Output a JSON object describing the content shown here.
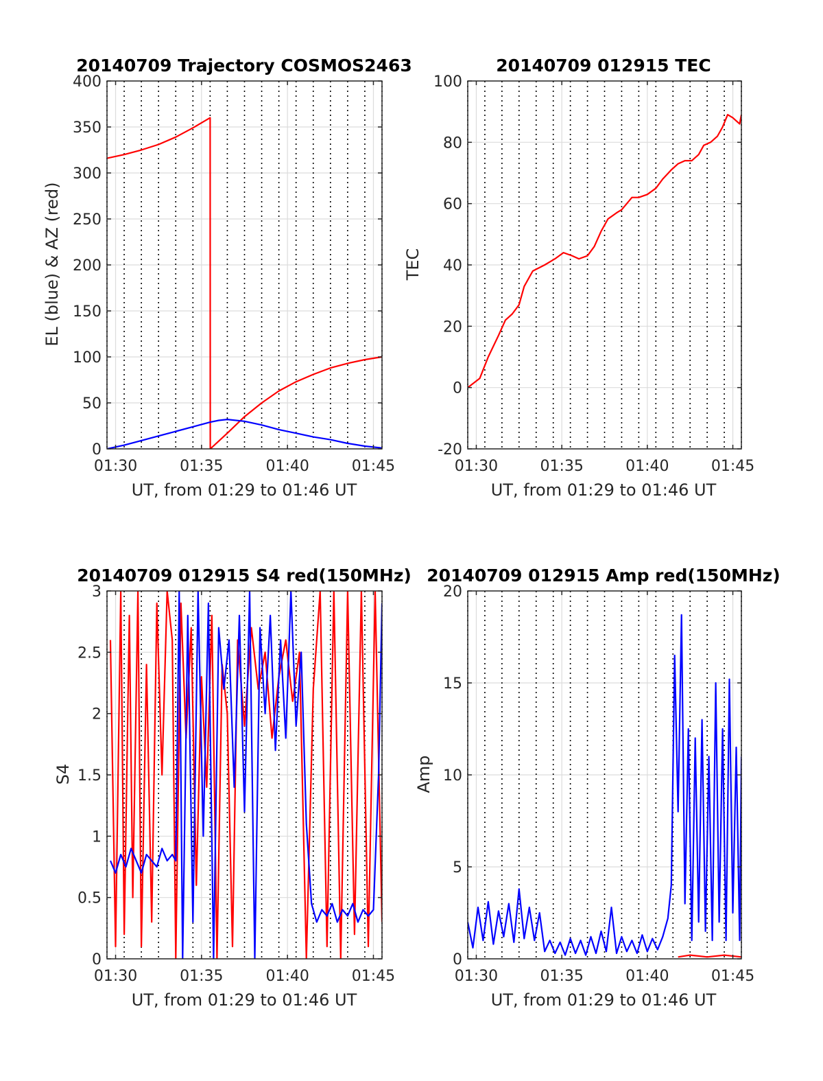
{
  "chart_data": [
    {
      "type": "line",
      "title": "20140709 Trajectory COSMOS2463",
      "xlabel": "UT, from 01:29 to 01:46 UT",
      "ylabel": "EL (blue) & AZ (red)",
      "xlim": [
        1.0,
        17.0
      ],
      "ylim": [
        0,
        400
      ],
      "x_ticks": [
        1.5,
        6.5,
        11.5,
        16.5
      ],
      "x_tick_labels": [
        "01:30",
        "01:35",
        "01:40",
        "01:45"
      ],
      "y_ticks": [
        0,
        50,
        100,
        150,
        200,
        250,
        300,
        350,
        400
      ],
      "y_tick_labels": [
        "0",
        "50",
        "100",
        "150",
        "200",
        "250",
        "300",
        "350",
        "400"
      ],
      "grid": "dotted vertical lines each minute, solid gray grid at ticks",
      "series": [
        {
          "color": "#ff0000",
          "points": [
            [
              1.0,
              316
            ],
            [
              2.0,
              320
            ],
            [
              3.0,
              325
            ],
            [
              4.0,
              331
            ],
            [
              5.0,
              339
            ],
            [
              6.0,
              349
            ],
            [
              7.0,
              360
            ],
            [
              7.01,
              0
            ],
            [
              8.0,
              17
            ],
            [
              9.0,
              35
            ],
            [
              10.0,
              50
            ],
            [
              11.0,
              63
            ],
            [
              12.0,
              73
            ],
            [
              13.0,
              81
            ],
            [
              14.0,
              88
            ],
            [
              15.0,
              93
            ],
            [
              16.0,
              97
            ],
            [
              17.0,
              100
            ]
          ]
        },
        {
          "color": "#0000ff",
          "points": [
            [
              1.0,
              0
            ],
            [
              2.0,
              4
            ],
            [
              3.0,
              9
            ],
            [
              4.0,
              14
            ],
            [
              5.0,
              19
            ],
            [
              6.0,
              24
            ],
            [
              7.0,
              29
            ],
            [
              7.5,
              31
            ],
            [
              8.0,
              32
            ],
            [
              9.0,
              30
            ],
            [
              10.0,
              26
            ],
            [
              11.0,
              21
            ],
            [
              12.0,
              17
            ],
            [
              13.0,
              13
            ],
            [
              14.0,
              10
            ],
            [
              15.0,
              6
            ],
            [
              16.0,
              3
            ],
            [
              17.0,
              1
            ]
          ]
        }
      ]
    },
    {
      "type": "line",
      "title": "20140709 012915 TEC",
      "xlabel": "UT, from 01:29 to 01:46 UT",
      "ylabel": "TEC",
      "xlim": [
        1.0,
        17.0
      ],
      "ylim": [
        -20,
        100
      ],
      "x_ticks": [
        1.5,
        6.5,
        11.5,
        16.5
      ],
      "x_tick_labels": [
        "01:30",
        "01:35",
        "01:40",
        "01:45"
      ],
      "y_ticks": [
        -20,
        0,
        20,
        40,
        60,
        80,
        100
      ],
      "y_tick_labels": [
        "-20",
        "0",
        "20",
        "40",
        "60",
        "80",
        "100"
      ],
      "series": [
        {
          "color": "#ff0000",
          "points": [
            [
              1.0,
              0
            ],
            [
              1.7,
              3
            ],
            [
              2.2,
              10
            ],
            [
              2.8,
              17
            ],
            [
              3.2,
              22
            ],
            [
              3.6,
              24
            ],
            [
              4.0,
              27
            ],
            [
              4.3,
              33
            ],
            [
              4.8,
              38
            ],
            [
              5.5,
              40
            ],
            [
              6.1,
              42
            ],
            [
              6.6,
              44
            ],
            [
              7.1,
              43
            ],
            [
              7.5,
              42
            ],
            [
              8.0,
              43
            ],
            [
              8.4,
              46
            ],
            [
              8.8,
              51
            ],
            [
              9.2,
              55
            ],
            [
              9.7,
              57
            ],
            [
              10.0,
              58
            ],
            [
              10.3,
              60
            ],
            [
              10.6,
              62
            ],
            [
              11.0,
              62
            ],
            [
              11.5,
              63
            ],
            [
              12.0,
              65
            ],
            [
              12.4,
              68
            ],
            [
              12.9,
              71
            ],
            [
              13.3,
              73
            ],
            [
              13.7,
              74
            ],
            [
              14.1,
              74
            ],
            [
              14.5,
              76
            ],
            [
              14.8,
              79
            ],
            [
              15.2,
              80
            ],
            [
              15.6,
              82
            ],
            [
              15.9,
              85
            ],
            [
              16.2,
              89
            ],
            [
              16.5,
              88
            ],
            [
              16.7,
              87
            ],
            [
              16.9,
              86
            ],
            [
              17.0,
              89
            ]
          ]
        }
      ]
    },
    {
      "type": "line",
      "title": "20140709 012915 S4 red(150MHz)",
      "xlabel": "UT, from 01:29 to 01:46 UT",
      "ylabel": "S4",
      "xlim": [
        1.0,
        17.0
      ],
      "ylim": [
        0,
        3
      ],
      "x_ticks": [
        1.5,
        6.5,
        11.5,
        16.5
      ],
      "x_tick_labels": [
        "01:30",
        "01:35",
        "01:40",
        "01:45"
      ],
      "y_ticks": [
        0,
        0.5,
        1,
        1.5,
        2,
        2.5,
        3
      ],
      "y_tick_labels": [
        "0",
        "0.5",
        "1",
        "1.5",
        "2",
        "2.5",
        "3"
      ],
      "series": [
        {
          "color": "#ff0000",
          "points": [
            [
              1.2,
              2.6
            ],
            [
              1.5,
              0.1
            ],
            [
              1.8,
              3.0
            ],
            [
              2.0,
              0.2
            ],
            [
              2.3,
              2.8
            ],
            [
              2.5,
              0.5
            ],
            [
              2.8,
              3.0
            ],
            [
              3.0,
              0.1
            ],
            [
              3.3,
              2.4
            ],
            [
              3.6,
              0.3
            ],
            [
              3.9,
              2.9
            ],
            [
              4.2,
              1.5
            ],
            [
              4.5,
              3.0
            ],
            [
              4.8,
              2.6
            ],
            [
              5.0,
              0.0
            ],
            [
              5.3,
              2.9
            ],
            [
              5.6,
              1.8
            ],
            [
              5.9,
              2.7
            ],
            [
              6.2,
              0.6
            ],
            [
              6.5,
              2.3
            ],
            [
              6.8,
              1.4
            ],
            [
              7.1,
              2.8
            ],
            [
              7.4,
              0.0
            ],
            [
              7.7,
              2.4
            ],
            [
              8.0,
              2.0
            ],
            [
              8.3,
              0.1
            ],
            [
              8.6,
              2.6
            ],
            [
              9.0,
              1.9
            ],
            [
              9.4,
              2.7
            ],
            [
              9.8,
              2.2
            ],
            [
              10.2,
              2.5
            ],
            [
              10.6,
              1.8
            ],
            [
              11.0,
              2.3
            ],
            [
              11.4,
              2.6
            ],
            [
              11.8,
              2.1
            ],
            [
              12.2,
              2.5
            ],
            [
              12.6,
              0.0
            ],
            [
              13.0,
              2.2
            ],
            [
              13.4,
              3.0
            ],
            [
              13.8,
              0.1
            ],
            [
              14.2,
              3.0
            ],
            [
              14.6,
              0.0
            ],
            [
              15.0,
              3.0
            ],
            [
              15.4,
              0.2
            ],
            [
              15.8,
              3.0
            ],
            [
              16.2,
              0.1
            ],
            [
              16.6,
              3.0
            ],
            [
              17.0,
              0.3
            ]
          ]
        },
        {
          "color": "#0000ff",
          "points": [
            [
              1.2,
              0.8
            ],
            [
              1.5,
              0.7
            ],
            [
              1.8,
              0.85
            ],
            [
              2.1,
              0.75
            ],
            [
              2.4,
              0.9
            ],
            [
              2.7,
              0.8
            ],
            [
              3.0,
              0.7
            ],
            [
              3.3,
              0.85
            ],
            [
              3.6,
              0.8
            ],
            [
              3.9,
              0.75
            ],
            [
              4.2,
              0.9
            ],
            [
              4.5,
              0.8
            ],
            [
              4.8,
              0.85
            ],
            [
              5.0,
              0.8
            ],
            [
              5.2,
              3.0
            ],
            [
              5.4,
              0.0
            ],
            [
              5.7,
              2.8
            ],
            [
              6.0,
              0.3
            ],
            [
              6.3,
              3.0
            ],
            [
              6.6,
              1.0
            ],
            [
              6.9,
              2.9
            ],
            [
              7.2,
              0.0
            ],
            [
              7.5,
              2.7
            ],
            [
              7.8,
              2.2
            ],
            [
              8.1,
              2.6
            ],
            [
              8.4,
              1.4
            ],
            [
              8.7,
              2.8
            ],
            [
              9.0,
              1.2
            ],
            [
              9.3,
              3.0
            ],
            [
              9.6,
              0.0
            ],
            [
              9.9,
              2.7
            ],
            [
              10.2,
              2.0
            ],
            [
              10.5,
              2.8
            ],
            [
              10.8,
              1.7
            ],
            [
              11.1,
              2.6
            ],
            [
              11.4,
              1.8
            ],
            [
              11.7,
              3.0
            ],
            [
              12.0,
              1.9
            ],
            [
              12.3,
              2.5
            ],
            [
              12.6,
              1.1
            ],
            [
              12.9,
              0.45
            ],
            [
              13.2,
              0.3
            ],
            [
              13.5,
              0.4
            ],
            [
              13.8,
              0.35
            ],
            [
              14.1,
              0.45
            ],
            [
              14.4,
              0.3
            ],
            [
              14.7,
              0.4
            ],
            [
              15.0,
              0.35
            ],
            [
              15.3,
              0.45
            ],
            [
              15.6,
              0.3
            ],
            [
              15.9,
              0.4
            ],
            [
              16.2,
              0.35
            ],
            [
              16.5,
              0.4
            ],
            [
              16.8,
              1.5
            ],
            [
              17.0,
              2.9
            ]
          ]
        }
      ]
    },
    {
      "type": "line",
      "title": "20140709 012915 Amp red(150MHz)",
      "xlabel": "UT, from 01:29 to 01:46 UT",
      "ylabel": "Amp",
      "xlim": [
        1.0,
        17.0
      ],
      "ylim": [
        0,
        20
      ],
      "x_ticks": [
        1.5,
        6.5,
        11.5,
        16.5
      ],
      "x_tick_labels": [
        "01:30",
        "01:35",
        "01:40",
        "01:45"
      ],
      "y_ticks": [
        0,
        5,
        10,
        15,
        20
      ],
      "y_tick_labels": [
        "0",
        "5",
        "10",
        "15",
        "20"
      ],
      "series": [
        {
          "color": "#ff0000",
          "points": [
            [
              13.3,
              0.1
            ],
            [
              14.0,
              0.2
            ],
            [
              15.0,
              0.1
            ],
            [
              16.0,
              0.2
            ],
            [
              17.0,
              0.1
            ]
          ]
        },
        {
          "color": "#0000ff",
          "points": [
            [
              1.0,
              2.0
            ],
            [
              1.3,
              0.6
            ],
            [
              1.6,
              2.8
            ],
            [
              1.9,
              1.0
            ],
            [
              2.2,
              3.1
            ],
            [
              2.5,
              0.8
            ],
            [
              2.8,
              2.6
            ],
            [
              3.1,
              1.2
            ],
            [
              3.4,
              3.0
            ],
            [
              3.7,
              0.9
            ],
            [
              4.0,
              3.8
            ],
            [
              4.3,
              1.1
            ],
            [
              4.6,
              2.8
            ],
            [
              4.9,
              1.0
            ],
            [
              5.2,
              2.5
            ],
            [
              5.5,
              0.4
            ],
            [
              5.8,
              1.0
            ],
            [
              6.1,
              0.3
            ],
            [
              6.4,
              0.9
            ],
            [
              6.7,
              0.2
            ],
            [
              7.0,
              1.1
            ],
            [
              7.3,
              0.3
            ],
            [
              7.6,
              1.0
            ],
            [
              7.9,
              0.2
            ],
            [
              8.2,
              1.2
            ],
            [
              8.5,
              0.3
            ],
            [
              8.8,
              1.5
            ],
            [
              9.1,
              0.4
            ],
            [
              9.4,
              2.8
            ],
            [
              9.7,
              0.3
            ],
            [
              10.0,
              1.2
            ],
            [
              10.3,
              0.4
            ],
            [
              10.6,
              1.0
            ],
            [
              10.9,
              0.3
            ],
            [
              11.2,
              1.3
            ],
            [
              11.5,
              0.4
            ],
            [
              11.8,
              1.1
            ],
            [
              12.1,
              0.5
            ],
            [
              12.4,
              1.2
            ],
            [
              12.7,
              2.2
            ],
            [
              12.9,
              4.0
            ],
            [
              13.1,
              16.5
            ],
            [
              13.3,
              8.0
            ],
            [
              13.5,
              18.7
            ],
            [
              13.7,
              3.0
            ],
            [
              13.9,
              12.5
            ],
            [
              14.1,
              1.0
            ],
            [
              14.3,
              12.0
            ],
            [
              14.5,
              2.0
            ],
            [
              14.7,
              13.0
            ],
            [
              14.9,
              1.5
            ],
            [
              15.1,
              11.0
            ],
            [
              15.3,
              1.0
            ],
            [
              15.5,
              15.0
            ],
            [
              15.7,
              2.0
            ],
            [
              15.9,
              12.5
            ],
            [
              16.1,
              1.0
            ],
            [
              16.3,
              15.2
            ],
            [
              16.5,
              2.5
            ],
            [
              16.7,
              11.5
            ],
            [
              16.9,
              1.0
            ],
            [
              17.0,
              11.0
            ]
          ]
        }
      ]
    }
  ]
}
